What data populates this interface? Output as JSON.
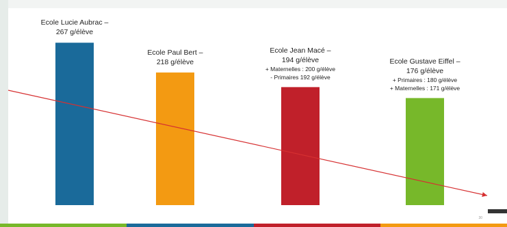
{
  "chart_data": {
    "type": "bar",
    "categories": [
      "Ecole Lucie Aubrac",
      "Ecole Paul Bert",
      "Ecole Jean Macé",
      "Ecole Gustave Eiffel"
    ],
    "values": [
      267,
      218,
      194,
      176
    ],
    "unit": "g/élève",
    "ylim": [
      0,
      290
    ],
    "grid": false,
    "bar_colors": [
      "#1a6a9a",
      "#f39a12",
      "#c0202a",
      "#77b82a"
    ],
    "trend_color": "#d63031",
    "labels": [
      {
        "name": "Ecole Lucie Aubrac –",
        "value": "267 g/élève",
        "details": []
      },
      {
        "name": "Ecole Paul Bert –",
        "value": "218 g/élève",
        "details": []
      },
      {
        "name": "Ecole Jean Macé –",
        "value": "194 g/élève",
        "details": [
          "+ Maternelles : 200 g/élève",
          "- Primaires 192 g/élève"
        ]
      },
      {
        "name": "Ecole Gustave Eiffel –",
        "value": "176 g/élève",
        "details": [
          "+ Primaires : 180 g/élève",
          "+ Maternelles : 171 g/élève"
        ]
      }
    ]
  },
  "footer": {
    "colors": [
      "#77b82a",
      "#1a6a9a",
      "#c0202a",
      "#f39a12"
    ],
    "page_number": "30"
  }
}
